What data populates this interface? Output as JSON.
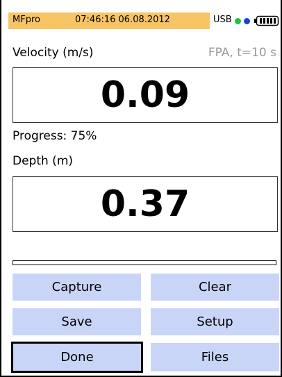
{
  "status_bar": {
    "app": "MFpro",
    "datetime": "07:46:16 06.08.2012",
    "usb": "USB"
  },
  "velocity": {
    "label": "Velocity (m/s)",
    "mode": "FPA, t=10 s",
    "value": "0.09"
  },
  "progress": "Progress: 75%",
  "depth": {
    "label": "Depth (m)",
    "value": "0.37"
  },
  "buttons": [
    "Capture",
    "Clear",
    "Save",
    "Setup",
    "Done",
    "Files"
  ]
}
